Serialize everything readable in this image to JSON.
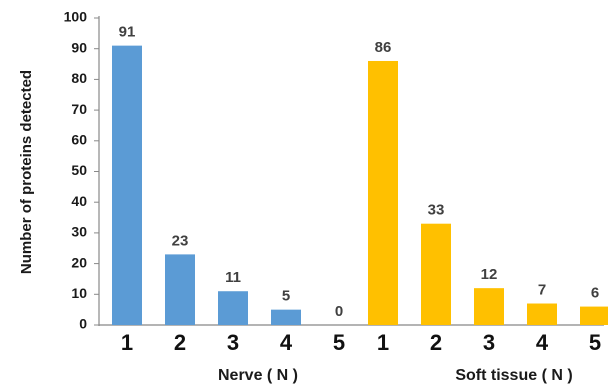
{
  "chart_data": {
    "type": "bar",
    "ylabel": "Number of proteins detected",
    "ylim": [
      0,
      100
    ],
    "yticks": [
      0,
      10,
      20,
      30,
      40,
      50,
      60,
      70,
      80,
      90,
      100
    ],
    "grid": false,
    "groups": [
      {
        "name": "Nerve ( N )",
        "color": "#5B9BD5",
        "categories": [
          "1",
          "2",
          "3",
          "4",
          "5"
        ],
        "values": [
          91,
          23,
          11,
          5,
          0
        ]
      },
      {
        "name": "Soft tissue ( N )",
        "color": "#FFC000",
        "categories": [
          "1",
          "2",
          "3",
          "4",
          "5"
        ],
        "values": [
          86,
          33,
          12,
          7,
          6
        ]
      }
    ]
  }
}
